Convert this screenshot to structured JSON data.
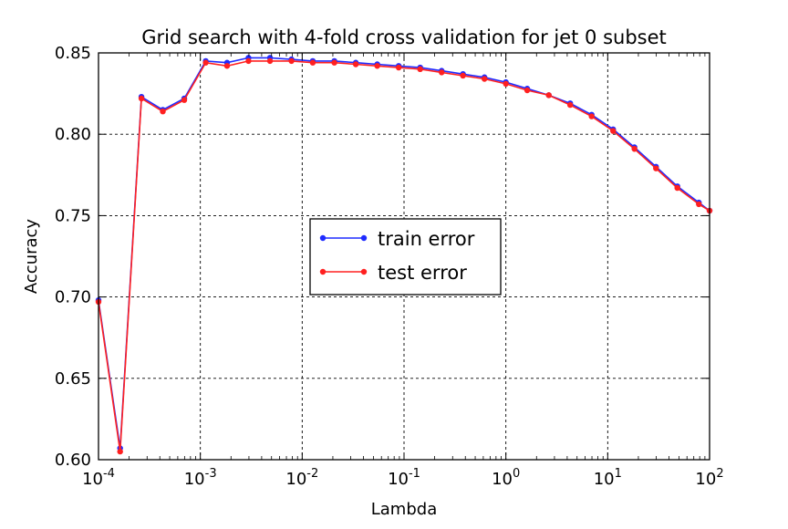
{
  "chart_data": {
    "type": "line",
    "title": "Grid search with 4-fold cross validation for jet 0 subset",
    "xlabel": "Lambda",
    "ylabel": "Accuracy",
    "xscale": "log",
    "xlim": [
      0.0001,
      100
    ],
    "ylim": [
      0.6,
      0.85
    ],
    "grid": true,
    "legend_position": "center",
    "x_ticks": [
      {
        "value": 0.0001,
        "base": "10",
        "exp": "-4"
      },
      {
        "value": 0.001,
        "base": "10",
        "exp": "-3"
      },
      {
        "value": 0.01,
        "base": "10",
        "exp": "-2"
      },
      {
        "value": 0.1,
        "base": "10",
        "exp": "-1"
      },
      {
        "value": 1,
        "base": "10",
        "exp": "0"
      },
      {
        "value": 10,
        "base": "10",
        "exp": "1"
      },
      {
        "value": 100,
        "base": "10",
        "exp": "2"
      }
    ],
    "y_ticks": [
      "0.60",
      "0.65",
      "0.70",
      "0.75",
      "0.80",
      "0.85"
    ],
    "x": [
      0.0001,
      0.000163,
      0.000264,
      0.000428,
      0.000695,
      0.00113,
      0.00183,
      0.00297,
      0.00483,
      0.00785,
      0.0127,
      0.0207,
      0.0336,
      0.0546,
      0.0886,
      0.144,
      0.234,
      0.379,
      0.616,
      1.0,
      1.62,
      2.64,
      4.28,
      6.95,
      11.3,
      18.3,
      29.8,
      48.3,
      78.5,
      100
    ],
    "series": [
      {
        "name": "train error",
        "color": "#1f2bff",
        "values": [
          0.698,
          0.607,
          0.823,
          0.815,
          0.822,
          0.845,
          0.844,
          0.847,
          0.847,
          0.846,
          0.845,
          0.845,
          0.844,
          0.843,
          0.842,
          0.841,
          0.839,
          0.837,
          0.835,
          0.832,
          0.828,
          0.824,
          0.819,
          0.812,
          0.803,
          0.792,
          0.78,
          0.768,
          0.758,
          0.753
        ]
      },
      {
        "name": "test error",
        "color": "#ff2020",
        "values": [
          0.697,
          0.605,
          0.822,
          0.814,
          0.821,
          0.844,
          0.842,
          0.845,
          0.845,
          0.845,
          0.844,
          0.844,
          0.843,
          0.842,
          0.841,
          0.84,
          0.838,
          0.836,
          0.834,
          0.831,
          0.827,
          0.824,
          0.818,
          0.811,
          0.802,
          0.791,
          0.779,
          0.767,
          0.757,
          0.753
        ]
      }
    ]
  }
}
